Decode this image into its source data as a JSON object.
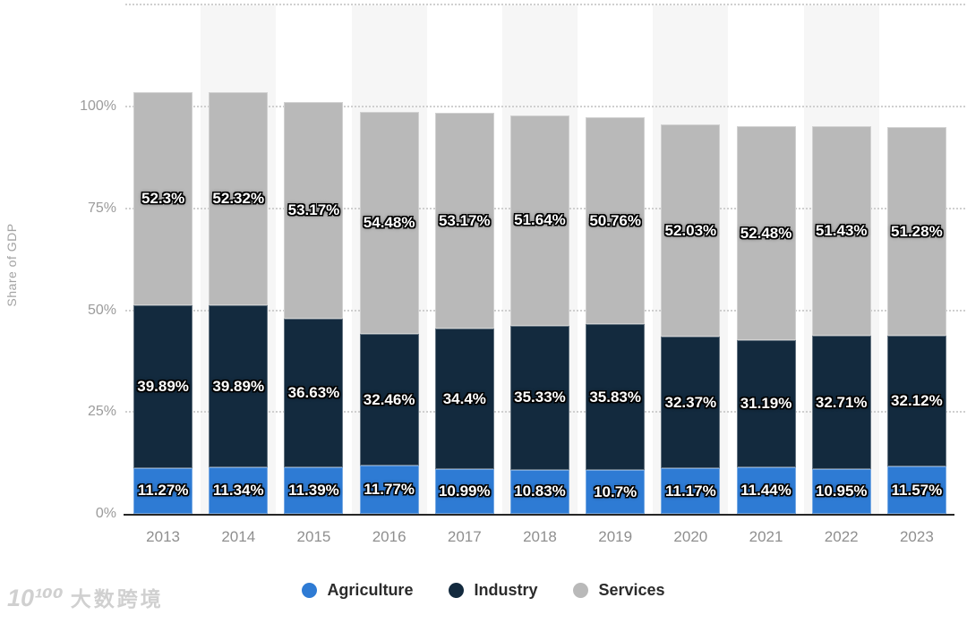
{
  "chart_data": {
    "type": "bar",
    "stacked": true,
    "title": "",
    "ylabel": "Share of GDP",
    "categories": [
      "2013",
      "2014",
      "2015",
      "2016",
      "2017",
      "2018",
      "2019",
      "2020",
      "2021",
      "2022",
      "2023"
    ],
    "series": [
      {
        "name": "Agriculture",
        "color": "#2e7bd4",
        "values": [
          11.27,
          11.34,
          11.39,
          11.77,
          10.99,
          10.83,
          10.7,
          11.17,
          11.44,
          10.95,
          11.57
        ]
      },
      {
        "name": "Industry",
        "color": "#132a3e",
        "values": [
          39.89,
          39.89,
          36.63,
          32.46,
          34.4,
          35.33,
          35.83,
          32.37,
          31.19,
          32.71,
          32.12
        ]
      },
      {
        "name": "Services",
        "color": "#b9b9b9",
        "values": [
          52.3,
          52.32,
          53.17,
          54.48,
          53.17,
          51.64,
          50.76,
          52.03,
          52.48,
          51.43,
          51.28
        ]
      }
    ],
    "ylim": [
      0,
      125
    ],
    "yticks": [
      "0%",
      "25%",
      "50%",
      "75%",
      "100%"
    ],
    "grid": "dotted horizontal, alternating light column bands",
    "legend_position": "bottom",
    "band_color": "#f6f6f6",
    "label_unit": "%"
  },
  "watermark": {
    "logo": "10¹⁰⁰",
    "text": "大数跨境"
  }
}
